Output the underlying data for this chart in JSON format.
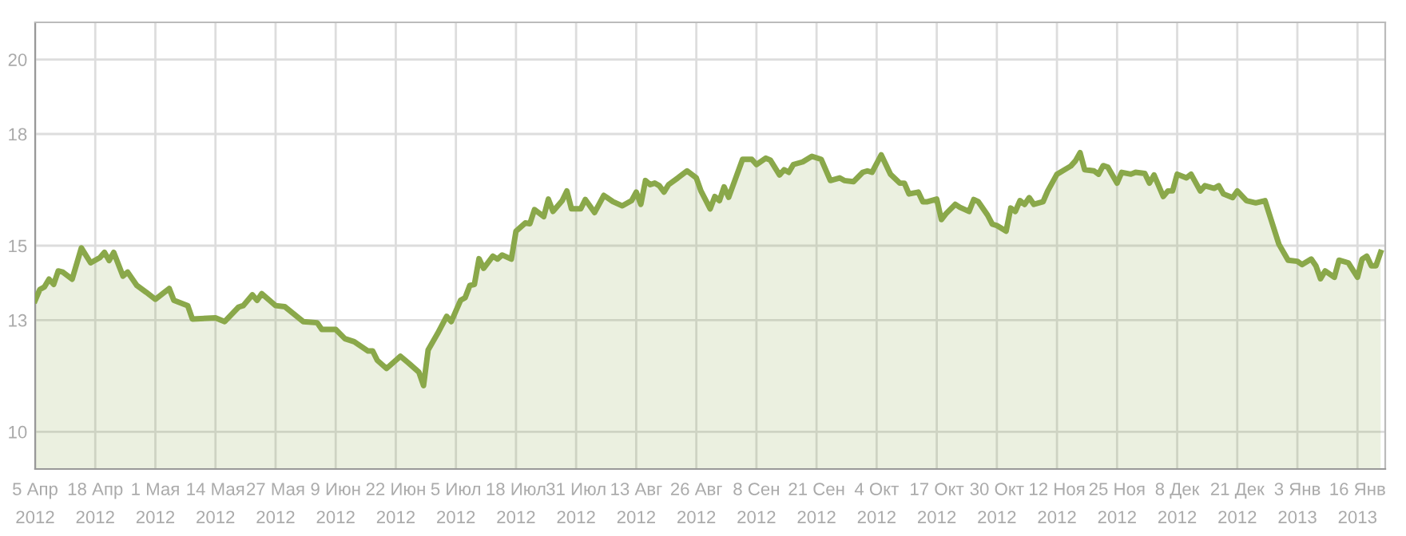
{
  "chart_data": {
    "type": "area",
    "x": [
      "2012-04-05",
      "2012-04-06",
      "2012-04-07",
      "2012-04-08",
      "2012-04-09",
      "2012-04-10",
      "2012-04-11",
      "2012-04-13",
      "2012-04-15",
      "2012-04-17",
      "2012-04-19",
      "2012-04-20",
      "2012-04-21",
      "2012-04-22",
      "2012-04-24",
      "2012-04-25",
      "2012-04-27",
      "2012-04-29",
      "2012-05-01",
      "2012-05-04",
      "2012-05-05",
      "2012-05-08",
      "2012-05-09",
      "2012-05-14",
      "2012-05-16",
      "2012-05-19",
      "2012-05-20",
      "2012-05-22",
      "2012-05-23",
      "2012-05-24",
      "2012-05-27",
      "2012-05-29",
      "2012-06-02",
      "2012-06-05",
      "2012-06-06",
      "2012-06-09",
      "2012-06-11",
      "2012-06-13",
      "2012-06-16",
      "2012-06-17",
      "2012-06-18",
      "2012-06-20",
      "2012-06-23",
      "2012-06-25",
      "2012-06-27",
      "2012-06-28",
      "2012-06-29",
      "2012-07-01",
      "2012-07-03",
      "2012-07-04",
      "2012-07-06",
      "2012-07-07",
      "2012-07-08",
      "2012-07-09",
      "2012-07-10",
      "2012-07-11",
      "2012-07-13",
      "2012-07-14",
      "2012-07-15",
      "2012-07-17",
      "2012-07-18",
      "2012-07-20",
      "2012-07-21",
      "2012-07-22",
      "2012-07-24",
      "2012-07-25",
      "2012-07-26",
      "2012-07-28",
      "2012-07-29",
      "2012-07-30",
      "2012-08-01",
      "2012-08-02",
      "2012-08-04",
      "2012-08-06",
      "2012-08-08",
      "2012-08-10",
      "2012-08-12",
      "2012-08-13",
      "2012-08-14",
      "2012-08-15",
      "2012-08-16",
      "2012-08-17",
      "2012-08-18",
      "2012-08-19",
      "2012-08-20",
      "2012-08-22",
      "2012-08-24",
      "2012-08-26",
      "2012-08-27",
      "2012-08-29",
      "2012-08-30",
      "2012-08-31",
      "2012-09-01",
      "2012-09-02",
      "2012-09-05",
      "2012-09-07",
      "2012-09-08",
      "2012-09-10",
      "2012-09-11",
      "2012-09-13",
      "2012-09-14",
      "2012-09-15",
      "2012-09-16",
      "2012-09-18",
      "2012-09-20",
      "2012-09-22",
      "2012-09-24",
      "2012-09-26",
      "2012-09-27",
      "2012-09-29",
      "2012-10-01",
      "2012-10-02",
      "2012-10-03",
      "2012-10-05",
      "2012-10-07",
      "2012-10-09",
      "2012-10-10",
      "2012-10-11",
      "2012-10-13",
      "2012-10-14",
      "2012-10-15",
      "2012-10-17",
      "2012-10-18",
      "2012-10-19",
      "2012-10-21",
      "2012-10-22",
      "2012-10-24",
      "2012-10-25",
      "2012-10-26",
      "2012-10-28",
      "2012-10-29",
      "2012-10-30",
      "2012-11-01",
      "2012-11-02",
      "2012-11-03",
      "2012-11-04",
      "2012-11-05",
      "2012-11-06",
      "2012-11-07",
      "2012-11-09",
      "2012-11-10",
      "2012-11-12",
      "2012-11-15",
      "2012-11-16",
      "2012-11-17",
      "2012-11-18",
      "2012-11-20",
      "2012-11-21",
      "2012-11-22",
      "2012-11-23",
      "2012-11-25",
      "2012-11-26",
      "2012-11-28",
      "2012-11-29",
      "2012-12-01",
      "2012-12-02",
      "2012-12-03",
      "2012-12-05",
      "2012-12-06",
      "2012-12-07",
      "2012-12-08",
      "2012-12-10",
      "2012-12-11",
      "2012-12-13",
      "2012-12-14",
      "2012-12-16",
      "2012-12-17",
      "2012-12-18",
      "2012-12-20",
      "2012-12-21",
      "2012-12-23",
      "2012-12-25",
      "2012-12-27",
      "2012-12-28",
      "2012-12-30",
      "2013-01-01",
      "2013-01-03",
      "2013-01-04",
      "2013-01-06",
      "2013-01-07",
      "2013-01-08",
      "2013-01-09",
      "2013-01-11",
      "2013-01-12",
      "2013-01-14",
      "2013-01-16",
      "2013-01-17",
      "2013-01-18",
      "2013-01-19",
      "2013-01-20",
      "2013-01-21"
    ],
    "series": [
      {
        "color": "#8aa84a",
        "values": [
          13.53,
          13.82,
          13.89,
          14.1,
          13.96,
          14.32,
          14.29,
          14.1,
          14.94,
          14.54,
          14.68,
          14.82,
          14.6,
          14.82,
          14.18,
          14.29,
          13.93,
          13.75,
          13.56,
          13.85,
          13.53,
          13.39,
          13.03,
          13.06,
          12.96,
          13.35,
          13.39,
          13.68,
          13.53,
          13.71,
          13.39,
          13.36,
          12.96,
          12.93,
          12.75,
          12.75,
          12.5,
          12.42,
          12.17,
          12.17,
          11.92,
          11.7,
          12.03,
          11.82,
          11.6,
          11.24,
          12.2,
          12.63,
          13.1,
          12.96,
          13.53,
          13.6,
          13.93,
          13.96,
          14.65,
          14.39,
          14.72,
          14.64,
          14.75,
          14.64,
          15.39,
          15.61,
          15.59,
          15.97,
          15.78,
          16.25,
          15.92,
          16.21,
          16.47,
          15.99,
          15.99,
          16.24,
          15.89,
          16.35,
          16.18,
          16.07,
          16.21,
          16.44,
          16.11,
          16.75,
          16.64,
          16.68,
          16.61,
          16.44,
          16.64,
          16.82,
          17.01,
          16.82,
          16.47,
          15.99,
          16.32,
          16.21,
          16.58,
          16.3,
          17.32,
          17.32,
          17.18,
          17.35,
          17.3,
          16.9,
          17.04,
          16.97,
          17.18,
          17.25,
          17.4,
          17.32,
          16.75,
          16.82,
          16.75,
          16.72,
          16.97,
          17.01,
          16.97,
          17.44,
          16.92,
          16.68,
          16.68,
          16.39,
          16.44,
          16.18,
          16.18,
          16.25,
          15.7,
          15.86,
          16.11,
          16.03,
          15.92,
          16.24,
          16.18,
          15.82,
          15.58,
          15.54,
          15.39,
          16.01,
          15.92,
          16.21,
          16.11,
          16.29,
          16.11,
          16.18,
          16.47,
          16.92,
          17.14,
          17.28,
          17.5,
          17.04,
          17.01,
          16.92,
          17.15,
          17.11,
          16.68,
          16.97,
          16.92,
          16.97,
          16.94,
          16.68,
          16.9,
          16.32,
          16.47,
          16.47,
          16.92,
          16.82,
          16.92,
          16.47,
          16.61,
          16.54,
          16.61,
          16.39,
          16.29,
          16.47,
          16.21,
          16.15,
          16.21,
          15.82,
          15.04,
          14.61,
          14.58,
          14.49,
          14.64,
          14.46,
          14.11,
          14.32,
          14.15,
          14.61,
          14.54,
          14.15,
          14.64,
          14.72,
          14.46,
          14.46,
          14.82
        ]
      }
    ],
    "xlim": [
      "2012-04-05",
      "2013-01-22"
    ],
    "xticks": [
      {
        "value": "2012-04-05",
        "label": "5 Апр\n2012"
      },
      {
        "value": "2012-04-18",
        "label": "18 Апр\n2012"
      },
      {
        "value": "2012-05-01",
        "label": "1 Мая\n2012"
      },
      {
        "value": "2012-05-14",
        "label": "14 Мая\n2012"
      },
      {
        "value": "2012-05-27",
        "label": "27 Мая\n2012"
      },
      {
        "value": "2012-06-09",
        "label": "9 Июн\n2012"
      },
      {
        "value": "2012-06-22",
        "label": "22 Июн\n2012"
      },
      {
        "value": "2012-07-05",
        "label": "5 Июл\n2012"
      },
      {
        "value": "2012-07-18",
        "label": "18 Июл\n2012"
      },
      {
        "value": "2012-07-31",
        "label": "31 Июл\n2012"
      },
      {
        "value": "2012-08-13",
        "label": "13 Авг\n2012"
      },
      {
        "value": "2012-08-26",
        "label": "26 Авг\n2012"
      },
      {
        "value": "2012-09-08",
        "label": "8 Сен\n2012"
      },
      {
        "value": "2012-09-21",
        "label": "21 Сен\n2012"
      },
      {
        "value": "2012-10-04",
        "label": "4 Окт\n2012"
      },
      {
        "value": "2012-10-17",
        "label": "17 Окт\n2012"
      },
      {
        "value": "2012-10-30",
        "label": "30 Окт\n2012"
      },
      {
        "value": "2012-11-12",
        "label": "12 Ноя\n2012"
      },
      {
        "value": "2012-11-25",
        "label": "25 Ноя\n2012"
      },
      {
        "value": "2012-12-08",
        "label": "8 Дек\n2012"
      },
      {
        "value": "2012-12-21",
        "label": "21 Дек\n2012"
      },
      {
        "value": "2013-01-03",
        "label": "3 Янв\n2013"
      },
      {
        "value": "2013-01-16",
        "label": "16 Янв\n2013"
      }
    ],
    "ylim": [
      9,
      21
    ],
    "yticks": [
      10,
      13,
      15,
      18,
      20
    ],
    "grid": true
  }
}
